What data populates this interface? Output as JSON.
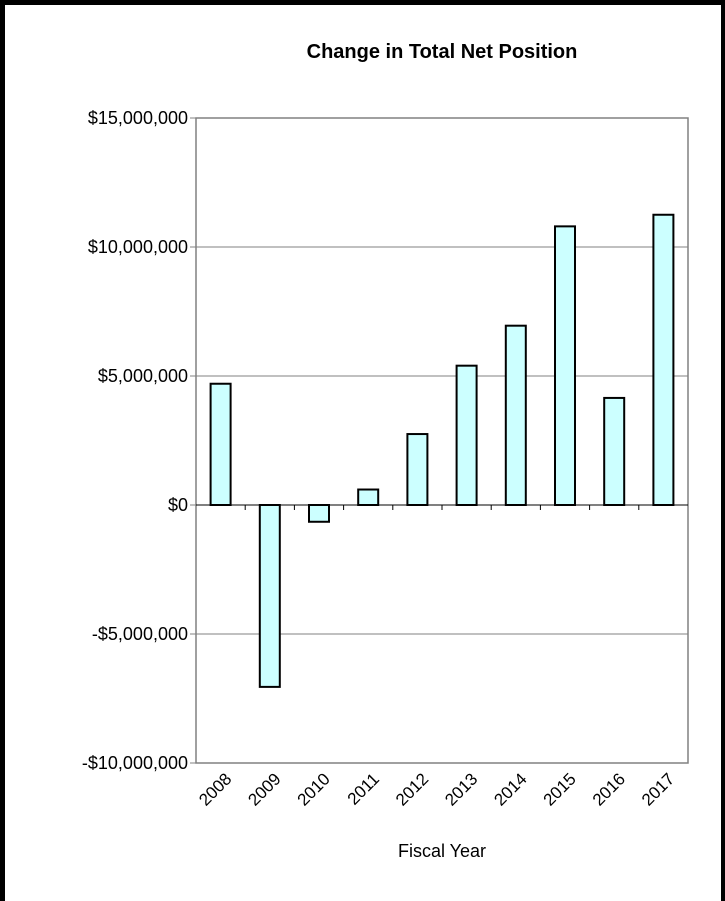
{
  "chart_data": {
    "type": "bar",
    "title": "Change in Total Net Position",
    "xlabel": "Fiscal Year",
    "ylabel": "",
    "categories": [
      "2008",
      "2009",
      "2010",
      "2011",
      "2012",
      "2013",
      "2014",
      "2015",
      "2016",
      "2017"
    ],
    "values": [
      4700000,
      -7050000,
      -650000,
      600000,
      2750000,
      5400000,
      6950000,
      10800000,
      4150000,
      11250000
    ],
    "ylim": [
      -10000000,
      15000000
    ],
    "yticks": [
      15000000,
      10000000,
      5000000,
      0,
      -5000000,
      -10000000
    ],
    "ytick_labels": [
      "$15,000,000",
      "$10,000,000",
      "$5,000,000",
      "$0",
      "-$5,000,000",
      "-$10,000,000"
    ],
    "grid": true,
    "legend": "none",
    "bar_color": "#ccffff",
    "bar_edge_color": "#000000"
  }
}
